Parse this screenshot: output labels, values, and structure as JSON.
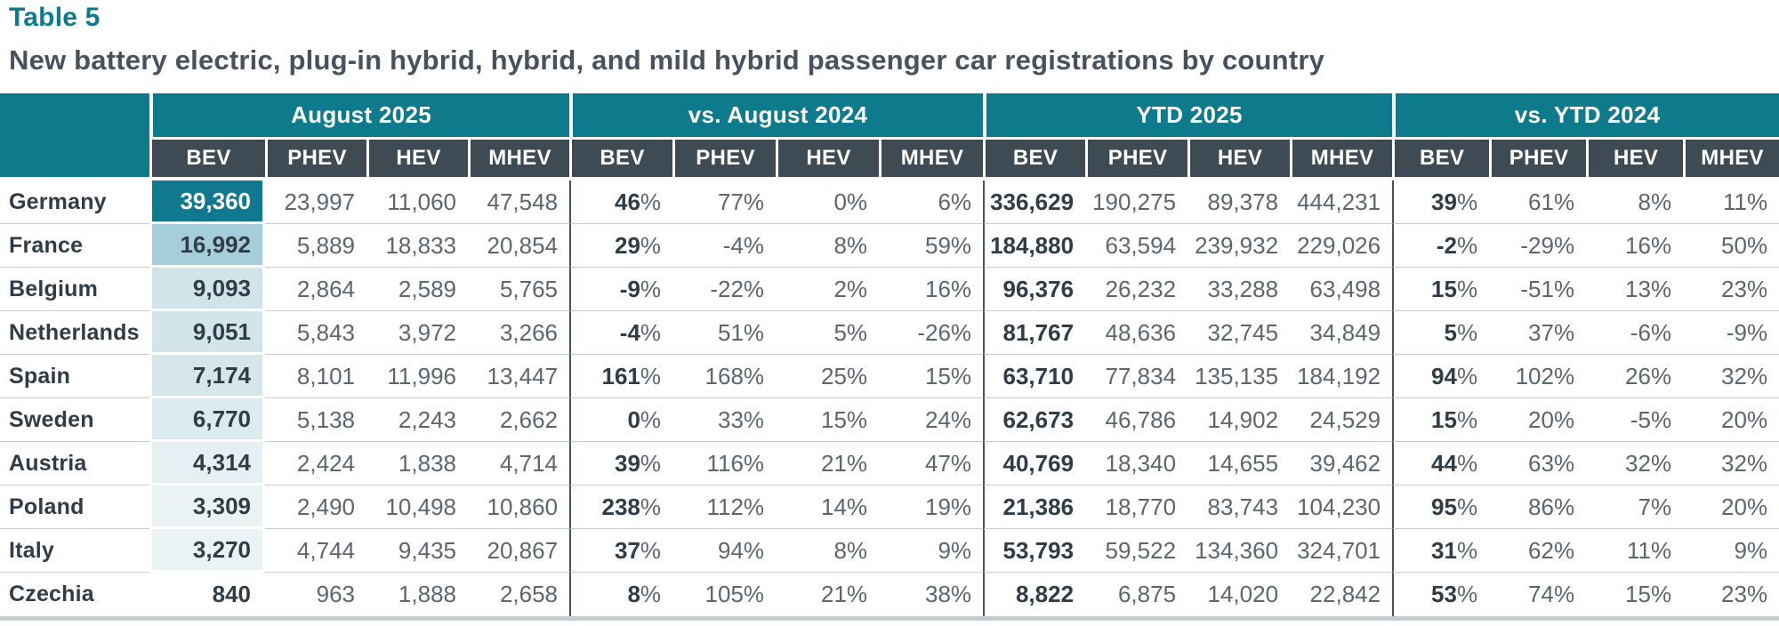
{
  "title": "Table 5",
  "subtitle": "New battery electric, plug-in hybrid, hybrid, and mild hybrid passenger car registrations by country",
  "colors": {
    "teal_header": "#0d7b8c",
    "slate_subheader": "#3e4b55",
    "text_dark": "#303c46",
    "text_gray": "#5c666f",
    "group_separator": "#47535b",
    "row_line": "#c6cdd1",
    "bottom_line": "#c3ccd0"
  },
  "chart_data": {
    "type": "table",
    "title": "New battery electric, plug-in hybrid, hybrid, and mild hybrid passenger car registrations by country",
    "table_number": "Table 5",
    "column_groups": [
      "August 2025",
      "vs. August 2024",
      "YTD 2025",
      "vs. YTD 2024"
    ],
    "sub_columns": [
      "BEV",
      "PHEV",
      "HEV",
      "MHEV"
    ],
    "heatmap_note": "August 2025 BEV column shaded teal by value, darkest = highest",
    "rows": [
      {
        "country": "Germany",
        "values": [
          "39,360",
          "23,997",
          "11,060",
          "47,548",
          "46%",
          "77%",
          "0%",
          "6%",
          "336,629",
          "190,275",
          "89,378",
          "444,231",
          "39%",
          "61%",
          "8%",
          "11%"
        ],
        "bev_bg": "#10798f",
        "bev_fg": "#ffffff"
      },
      {
        "country": "France",
        "values": [
          "16,992",
          "5,889",
          "18,833",
          "20,854",
          "29%",
          "-4%",
          "8%",
          "59%",
          "184,880",
          "63,594",
          "239,932",
          "229,026",
          "-2%",
          "-29%",
          "16%",
          "50%"
        ],
        "bev_bg": "#a6ceda",
        "bev_fg": "#303c46"
      },
      {
        "country": "Belgium",
        "values": [
          "9,093",
          "2,864",
          "2,589",
          "5,765",
          "-9%",
          "-22%",
          "2%",
          "16%",
          "96,376",
          "26,232",
          "33,288",
          "63,498",
          "15%",
          "-51%",
          "13%",
          "23%"
        ],
        "bev_bg": "#d0e4ea",
        "bev_fg": "#303c46"
      },
      {
        "country": "Netherlands",
        "values": [
          "9,051",
          "5,843",
          "3,972",
          "3,266",
          "-4%",
          "51%",
          "5%",
          "-26%",
          "81,767",
          "48,636",
          "32,745",
          "34,849",
          "5%",
          "37%",
          "-6%",
          "-9%"
        ],
        "bev_bg": "#d1e5ea",
        "bev_fg": "#303c46"
      },
      {
        "country": "Spain",
        "values": [
          "7,174",
          "8,101",
          "11,996",
          "13,447",
          "161%",
          "168%",
          "25%",
          "15%",
          "63,710",
          "77,834",
          "135,135",
          "184,192",
          "94%",
          "102%",
          "26%",
          "32%"
        ],
        "bev_bg": "#d5e7eb",
        "bev_fg": "#303c46"
      },
      {
        "country": "Sweden",
        "values": [
          "6,770",
          "5,138",
          "2,243",
          "2,662",
          "0%",
          "33%",
          "15%",
          "24%",
          "62,673",
          "46,786",
          "14,902",
          "24,529",
          "15%",
          "20%",
          "-5%",
          "20%"
        ],
        "bev_bg": "#dcebee",
        "bev_fg": "#303c46"
      },
      {
        "country": "Austria",
        "values": [
          "4,314",
          "2,424",
          "1,838",
          "4,714",
          "39%",
          "116%",
          "21%",
          "47%",
          "40,769",
          "18,340",
          "14,655",
          "39,462",
          "44%",
          "63%",
          "32%",
          "32%"
        ],
        "bev_bg": "#e6eff2",
        "bev_fg": "#303c46"
      },
      {
        "country": "Poland",
        "values": [
          "3,309",
          "2,490",
          "10,498",
          "10,860",
          "238%",
          "112%",
          "14%",
          "19%",
          "21,386",
          "18,770",
          "83,743",
          "104,230",
          "95%",
          "86%",
          "7%",
          "20%"
        ],
        "bev_bg": "#eaf2f4",
        "bev_fg": "#303c46"
      },
      {
        "country": "Italy",
        "values": [
          "3,270",
          "4,744",
          "9,435",
          "20,867",
          "37%",
          "94%",
          "8%",
          "9%",
          "53,793",
          "59,522",
          "134,360",
          "324,701",
          "31%",
          "62%",
          "11%",
          "9%"
        ],
        "bev_bg": "#ebf2f4",
        "bev_fg": "#303c46"
      },
      {
        "country": "Czechia",
        "values": [
          "840",
          "963",
          "1,888",
          "2,658",
          "8%",
          "105%",
          "21%",
          "38%",
          "8,822",
          "6,875",
          "14,020",
          "22,842",
          "53%",
          "74%",
          "15%",
          "23%"
        ],
        "bev_bg": "#ffffff",
        "bev_fg": "#303c46"
      }
    ]
  }
}
